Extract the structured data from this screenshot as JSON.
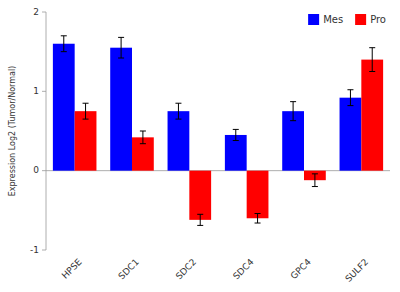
{
  "chart_data": {
    "type": "bar",
    "categories": [
      "HPSE",
      "SDC1",
      "SDC2",
      "SDC4",
      "GPC4",
      "SULF2"
    ],
    "series": [
      {
        "name": "Mes",
        "color": "#0000FF",
        "values": [
          1.6,
          1.55,
          0.75,
          0.45,
          0.75,
          0.92
        ],
        "errors": [
          0.1,
          0.13,
          0.1,
          0.07,
          0.12,
          0.1
        ]
      },
      {
        "name": "Pro",
        "color": "#FF0000",
        "values": [
          0.75,
          0.42,
          -0.62,
          -0.6,
          -0.12,
          1.4
        ],
        "errors": [
          0.1,
          0.08,
          0.07,
          0.06,
          0.08,
          0.15
        ]
      }
    ],
    "ylabel": "Expression Log2 (Tumor/Normal)",
    "ylim": [
      -1,
      2
    ],
    "yticks": [
      -1,
      0,
      1,
      2
    ],
    "legend": "upper right",
    "grid": false
  }
}
